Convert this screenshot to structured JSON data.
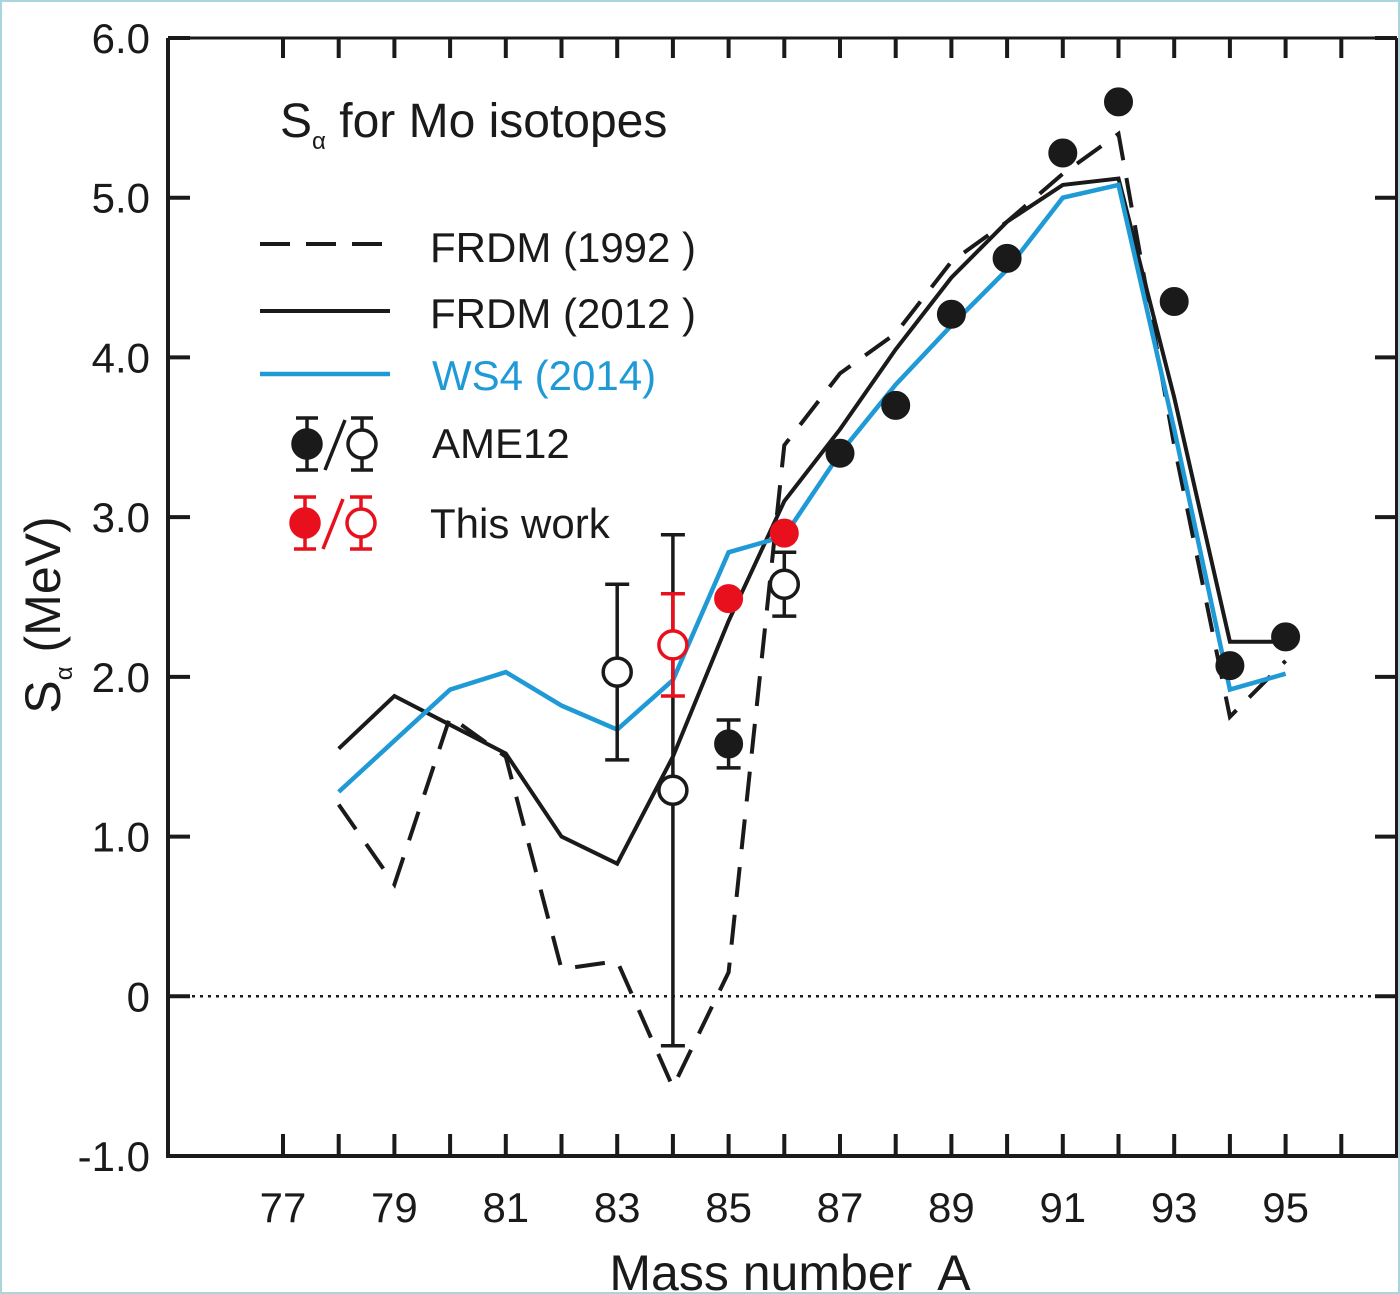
{
  "colors": {
    "black": "#1a1a1a",
    "blue": "#1f9ad6",
    "red": "#e8101c",
    "border": "#a9d6dc"
  },
  "chart_data": {
    "type": "line",
    "title_main": "S",
    "title_sub": "α",
    "title_rest": " for Mo isotopes",
    "xlabel": "Mass number  A",
    "ylabel_main": "S",
    "ylabel_sub": "α",
    "ylabel_rest": " (MeV)",
    "xlim": [
      75.6,
      96.9
    ],
    "ylim": [
      -1.0,
      6.0
    ],
    "x_ticks": [
      "77",
      "79",
      "81",
      "83",
      "85",
      "87",
      "89",
      "91",
      "93",
      "95"
    ],
    "y_ticks": [
      "6.0",
      "5.0",
      "4.0",
      "3.0",
      "2.0",
      "1.0",
      "0",
      "-1.0"
    ],
    "grid": false,
    "legend_position": "top-left",
    "series": [
      {
        "name": "FRDM (1992 )",
        "style": "dashed",
        "color": "#1a1a1a",
        "x": [
          78,
          79,
          80,
          81,
          82,
          83,
          84,
          85,
          86,
          87,
          88,
          89,
          90,
          91,
          92,
          93,
          94,
          95
        ],
        "y": [
          1.2,
          0.7,
          1.75,
          1.5,
          0.17,
          0.22,
          -0.57,
          0.15,
          3.45,
          3.9,
          4.15,
          4.6,
          4.85,
          5.15,
          5.4,
          3.45,
          1.75,
          2.1
        ]
      },
      {
        "name": "FRDM (2012 )",
        "style": "solid",
        "color": "#1a1a1a",
        "x": [
          78,
          79,
          80,
          81,
          82,
          83,
          84,
          85,
          86,
          87,
          88,
          89,
          90,
          91,
          92,
          93,
          94,
          95
        ],
        "y": [
          1.55,
          1.88,
          1.7,
          1.52,
          1.0,
          0.83,
          1.5,
          2.35,
          3.1,
          3.55,
          4.05,
          4.5,
          4.85,
          5.08,
          5.12,
          3.75,
          2.22,
          2.22
        ]
      },
      {
        "name": "WS4 (2014)",
        "style": "solid",
        "color": "#1f9ad6",
        "x": [
          78,
          79,
          80,
          81,
          82,
          83,
          84,
          85,
          86,
          87,
          88,
          89,
          90,
          91,
          92,
          93,
          94,
          95
        ],
        "y": [
          1.28,
          1.6,
          1.92,
          2.03,
          1.82,
          1.67,
          1.98,
          2.78,
          2.88,
          3.4,
          3.83,
          4.2,
          4.55,
          5.0,
          5.08,
          3.55,
          1.92,
          2.02
        ]
      },
      {
        "name": "AME12",
        "style": "markers",
        "color": "#1a1a1a",
        "filled_points": [
          {
            "x": 85,
            "y": 1.58,
            "err": 0.15
          },
          {
            "x": 87,
            "y": 3.4
          },
          {
            "x": 88,
            "y": 3.7
          },
          {
            "x": 89,
            "y": 4.27
          },
          {
            "x": 90,
            "y": 4.62
          },
          {
            "x": 91,
            "y": 5.28
          },
          {
            "x": 92,
            "y": 5.6
          },
          {
            "x": 93,
            "y": 4.35
          },
          {
            "x": 94,
            "y": 2.07
          },
          {
            "x": 95,
            "y": 2.25
          }
        ],
        "open_points": [
          {
            "x": 83,
            "y": 2.03,
            "err": 0.55
          },
          {
            "x": 84,
            "y": 1.29,
            "err": 1.6
          },
          {
            "x": 86,
            "y": 2.58,
            "err": 0.2
          }
        ]
      },
      {
        "name": "This work",
        "style": "markers",
        "color": "#e8101c",
        "filled_points": [
          {
            "x": 85,
            "y": 2.49
          },
          {
            "x": 86,
            "y": 2.9
          }
        ],
        "open_points": [
          {
            "x": 84,
            "y": 2.2,
            "err": 0.32
          }
        ]
      }
    ],
    "reference_line": {
      "y": 0,
      "style": "dotted"
    }
  }
}
